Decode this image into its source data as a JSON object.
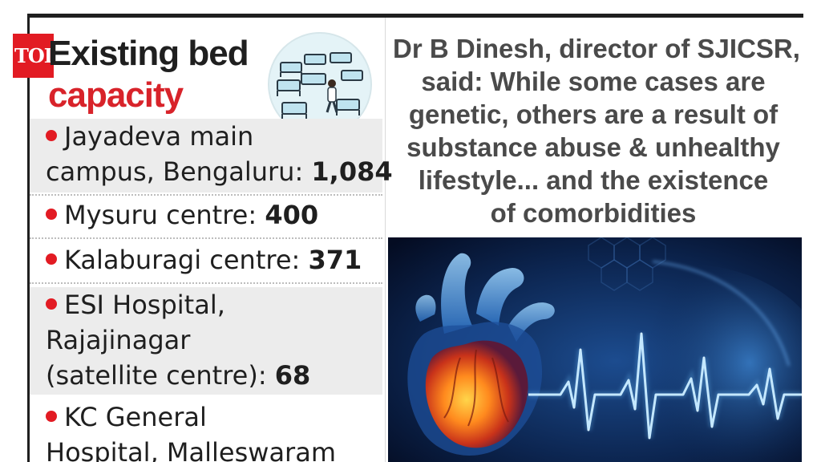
{
  "logo": {
    "text": "TOI"
  },
  "infobox": {
    "title_line1": "Existing bed",
    "title_line2": "capacity",
    "title_line2_color": "#d8232a",
    "bullet_color": "#e21b23",
    "illustration_icon": "hospital-ward-icon",
    "items": [
      {
        "lines": [
          "Jayadeva main",
          "campus, Bengaluru: "
        ],
        "value": "1,084"
      },
      {
        "lines": [
          "Mysuru centre: "
        ],
        "value": "400"
      },
      {
        "lines": [
          "Kalaburagi centre: "
        ],
        "value": "371"
      },
      {
        "lines": [
          "ESI Hospital,",
          "Rajajinagar",
          "(satellite centre): "
        ],
        "value": "68"
      },
      {
        "lines": [
          "KC General",
          "Hospital, Malleswaram"
        ],
        "value": ""
      }
    ]
  },
  "quote": {
    "lines": [
      "Dr B Dinesh, director of SJICSR,",
      "said: While some cases are",
      "genetic, others are a result of",
      "substance abuse & unhealthy",
      "lifestyle... and the existence",
      "of comorbidities"
    ]
  },
  "image": {
    "icon": "heart-ecg-icon"
  }
}
